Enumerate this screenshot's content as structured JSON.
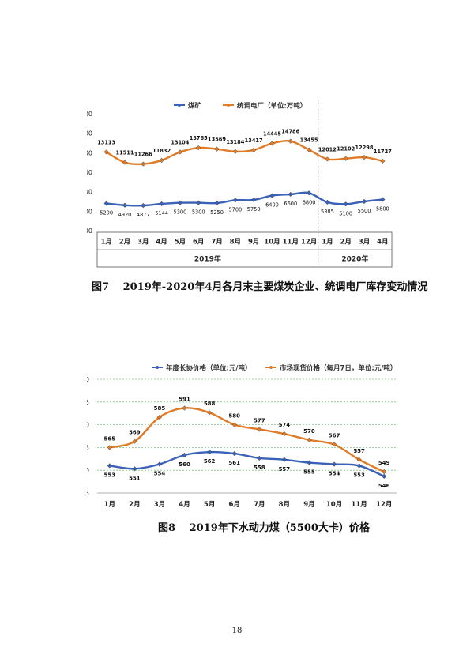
{
  "captions": {
    "fig7": "图7  2019年-2020年4月各月末主要煤炭企业、统调电厂库存变动情况",
    "fig8": "图8  2019年下水动力煤（5500大卡）价格"
  },
  "page_number": "18",
  "colors": {
    "blue": "#3a62b8",
    "orange": "#e07b27",
    "grid": "#c9c9c9",
    "green_grid": "#7cc57c"
  },
  "chart_data": [
    {
      "type": "line",
      "title": "",
      "categories": [
        "1月",
        "2月",
        "3月",
        "4月",
        "5月",
        "6月",
        "7月",
        "8月",
        "9月",
        "10月",
        "11月",
        "12月",
        "1月",
        "2月",
        "3月",
        "4月"
      ],
      "groups": [
        {
          "label": "2019年",
          "count": 12
        },
        {
          "label": "2020年",
          "count": 4
        }
      ],
      "series": [
        {
          "name": "煤矿",
          "color": "#3a62b8",
          "values": [
            5200,
            4920,
            4877,
            5144,
            5300,
            5300,
            5250,
            5700,
            5750,
            6400,
            6600,
            6800,
            5385,
            5100,
            5500,
            5800
          ]
        },
        {
          "name": "统调电厂（单位:万吨）",
          "color": "#e07b27",
          "values": [
            13113,
            11511,
            11266,
            11832,
            13104,
            13765,
            13569,
            13184,
            13417,
            14445,
            14786,
            13455,
            12012,
            12102,
            12298,
            11727
          ]
        }
      ],
      "yticks": [
        1000,
        4000,
        7000,
        10000,
        13000,
        16000,
        19000
      ],
      "ylim": [
        1000,
        19000
      ],
      "legend": "top"
    },
    {
      "type": "line",
      "title": "",
      "categories": [
        "1月",
        "2月",
        "3月",
        "4月",
        "5月",
        "6月",
        "7月",
        "8月",
        "9月",
        "10月",
        "11月",
        "12月"
      ],
      "series": [
        {
          "name": "年度长协价格（单位:元/吨）",
          "color": "#3a62b8",
          "values": [
            553,
            551,
            554,
            560,
            562,
            561,
            558,
            557,
            555,
            554,
            553,
            546
          ]
        },
        {
          "name": "市场现货价格（每月7日，单位:元/吨）",
          "color": "#e07b27",
          "values": [
            565,
            569,
            585,
            591,
            588,
            580,
            577,
            574,
            570,
            567,
            557,
            549
          ]
        }
      ],
      "yticks": [
        535,
        550,
        565,
        580,
        595,
        610
      ],
      "ylim": [
        535,
        610
      ],
      "legend": "top"
    }
  ]
}
